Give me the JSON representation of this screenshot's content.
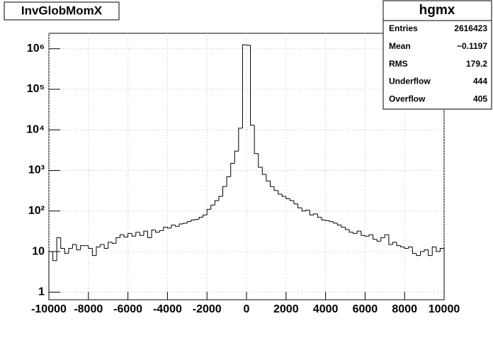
{
  "chart_data": {
    "type": "histogram",
    "title": "InvGlobMomX",
    "stats": {
      "title": "hgmx",
      "rows": [
        [
          "Entries",
          "2616423"
        ],
        [
          "Mean",
          "−0.1197"
        ],
        [
          "RMS",
          "179.2"
        ],
        [
          "Underflow",
          "444"
        ],
        [
          "Overflow",
          "405"
        ]
      ]
    },
    "bins": [
      -10000,
      -9800,
      -9600,
      -9400,
      -9200,
      -9000,
      -8800,
      -8600,
      -8400,
      -8200,
      -8000,
      -7800,
      -7600,
      -7400,
      -7200,
      -7000,
      -6800,
      -6600,
      -6400,
      -6200,
      -6000,
      -5800,
      -5600,
      -5400,
      -5200,
      -5000,
      -4800,
      -4600,
      -4400,
      -4200,
      -4000,
      -3800,
      -3600,
      -3400,
      -3200,
      -3000,
      -2800,
      -2600,
      -2400,
      -2200,
      -2000,
      -1800,
      -1600,
      -1400,
      -1200,
      -1000,
      -800,
      -600,
      -400,
      -200,
      0,
      200,
      400,
      600,
      800,
      1000,
      1200,
      1400,
      1600,
      1800,
      2000,
      2200,
      2400,
      2600,
      2800,
      3000,
      3200,
      3400,
      3600,
      3800,
      4000,
      4200,
      4400,
      4600,
      4800,
      5000,
      5200,
      5400,
      5600,
      5800,
      6000,
      6200,
      6400,
      6600,
      6800,
      7000,
      7200,
      7400,
      7600,
      7800,
      8000,
      8200,
      8400,
      8600,
      8800,
      9000,
      9200,
      9400,
      9600,
      9800,
      10000
    ],
    "values": [
      10,
      6,
      22,
      12,
      9,
      12,
      15,
      11,
      14,
      14,
      12,
      8,
      13,
      15,
      12,
      17,
      16,
      22,
      26,
      23,
      28,
      24,
      30,
      25,
      32,
      22,
      34,
      30,
      33,
      40,
      38,
      45,
      42,
      48,
      50,
      55,
      60,
      62,
      70,
      80,
      110,
      140,
      180,
      230,
      400,
      700,
      1500,
      3000,
      11000,
      1250000,
      1220000,
      13000,
      2600,
      1200,
      800,
      550,
      400,
      320,
      260,
      230,
      200,
      180,
      150,
      120,
      100,
      105,
      80,
      85,
      70,
      60,
      58,
      55,
      50,
      45,
      40,
      35,
      30,
      28,
      32,
      25,
      24,
      26,
      20,
      18,
      22,
      26,
      15,
      17,
      14,
      13,
      12,
      13,
      9,
      8,
      10,
      11,
      8,
      13,
      10,
      12
    ],
    "color": "#000000",
    "xlim": [
      -10000,
      10000
    ],
    "xticks": [
      -10000,
      -8000,
      -6000,
      -4000,
      -2000,
      0,
      2000,
      4000,
      6000,
      8000,
      10000
    ],
    "ylim": [
      0.65,
      2400000
    ],
    "log_y": true,
    "yticks": [
      1,
      10,
      {
        "value": 100,
        "label": "10²"
      },
      {
        "value": 1000,
        "label": "10³"
      },
      {
        "value": 10000,
        "label": "10⁴"
      },
      {
        "value": 100000,
        "label": "10⁵"
      },
      {
        "value": 1000000,
        "label": "10⁶"
      }
    ],
    "grid": true
  }
}
